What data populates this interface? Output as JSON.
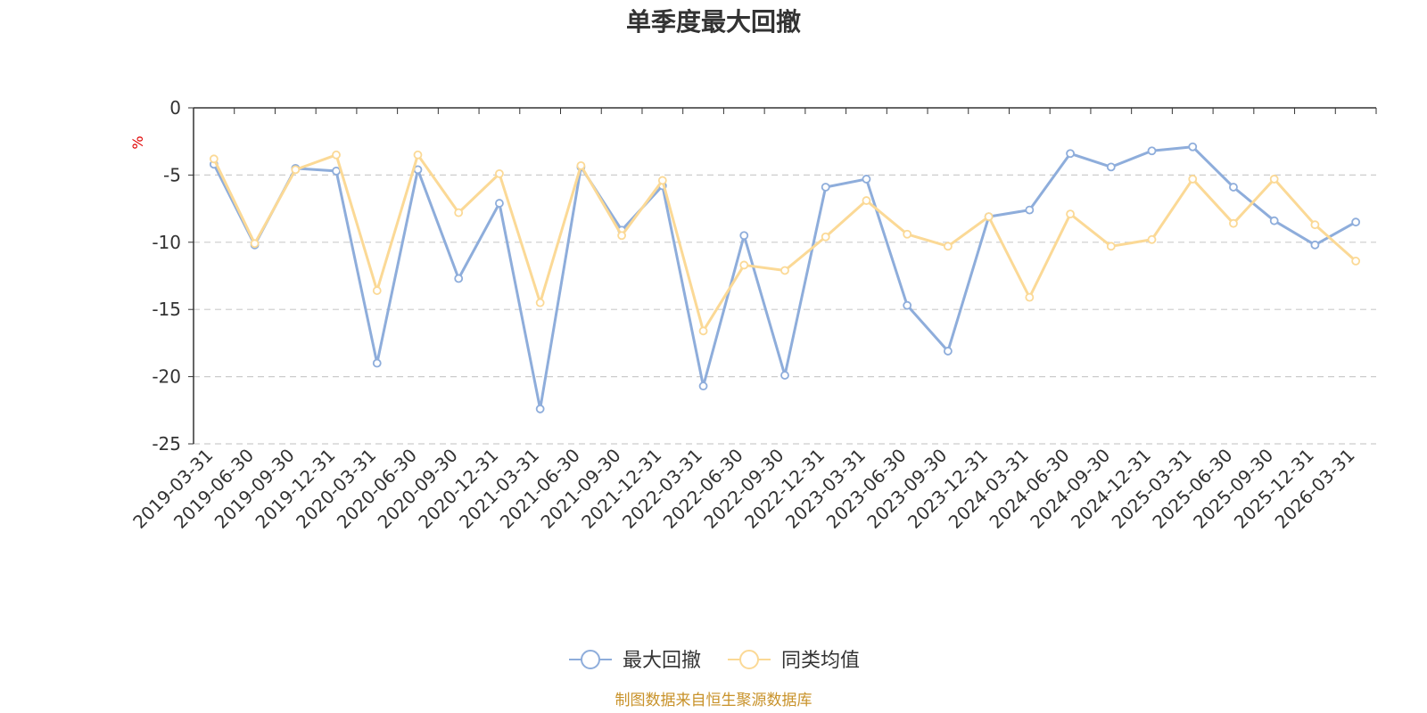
{
  "chart_data": {
    "type": "line",
    "title": "单季度最大回撤",
    "ylabel": "%",
    "ylim": [
      -25,
      0
    ],
    "yticks": [
      0,
      -5,
      -10,
      -15,
      -20,
      -25
    ],
    "grid": true,
    "legend_position": "bottom-center",
    "categories": [
      "2019-03-31",
      "2019-06-30",
      "2019-09-30",
      "2019-12-31",
      "2020-03-31",
      "2020-06-30",
      "2020-09-30",
      "2020-12-31",
      "2021-03-31",
      "2021-06-30",
      "2021-09-30",
      "2021-12-31",
      "2022-03-31",
      "2022-06-30",
      "2022-09-30",
      "2022-12-31",
      "2023-03-31",
      "2023-06-30",
      "2023-09-30",
      "2023-12-31",
      "2024-03-31",
      "2024-06-30",
      "2024-09-30",
      "2024-12-31",
      "2025-03-31",
      "2025-06-30",
      "2025-09-30",
      "2025-12-31",
      "2026-03-31"
    ],
    "series": [
      {
        "name": "最大回撤",
        "color": "#8eaddb",
        "values": [
          -4.2,
          -10.2,
          -4.5,
          -4.7,
          -19.0,
          -4.6,
          -12.7,
          -7.1,
          -22.4,
          -4.4,
          -9.1,
          -5.8,
          -20.7,
          -9.5,
          -19.9,
          -5.9,
          -5.3,
          -14.7,
          -18.1,
          -8.1,
          -7.6,
          -3.4,
          -4.4,
          -3.2,
          -2.9,
          -5.9,
          -8.4,
          -10.2,
          -8.5
        ]
      },
      {
        "name": "同类均值",
        "color": "#fbd996",
        "values": [
          -3.8,
          -10.1,
          -4.6,
          -3.5,
          -13.6,
          -3.5,
          -7.8,
          -4.9,
          -14.5,
          -4.3,
          -9.5,
          -5.4,
          -16.6,
          -11.7,
          -12.1,
          -9.6,
          -6.9,
          -9.4,
          -10.3,
          -8.1,
          -14.1,
          -7.9,
          -10.3,
          -9.8,
          -5.3,
          -8.6,
          -5.3,
          -8.7,
          -11.4
        ]
      }
    ],
    "source": "制图数据来自恒生聚源数据库"
  }
}
